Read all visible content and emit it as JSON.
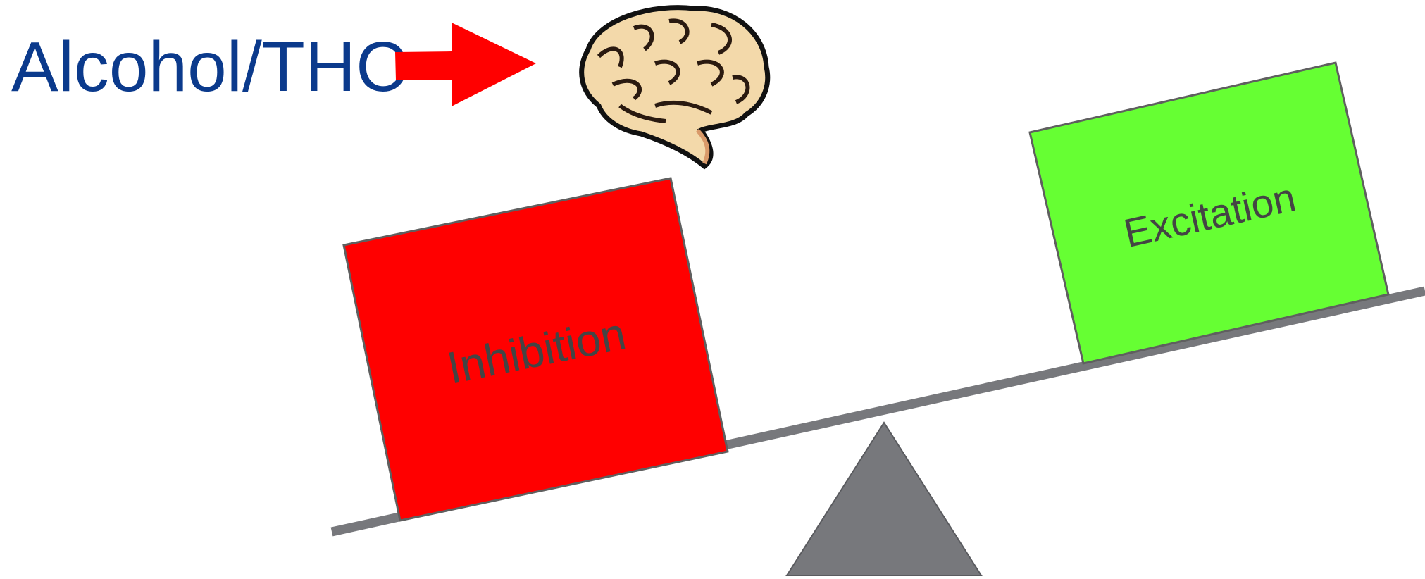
{
  "title": "Alcohol/THC",
  "left_block": {
    "label": "Inhibition"
  },
  "right_block": {
    "label": "Excitation"
  }
}
